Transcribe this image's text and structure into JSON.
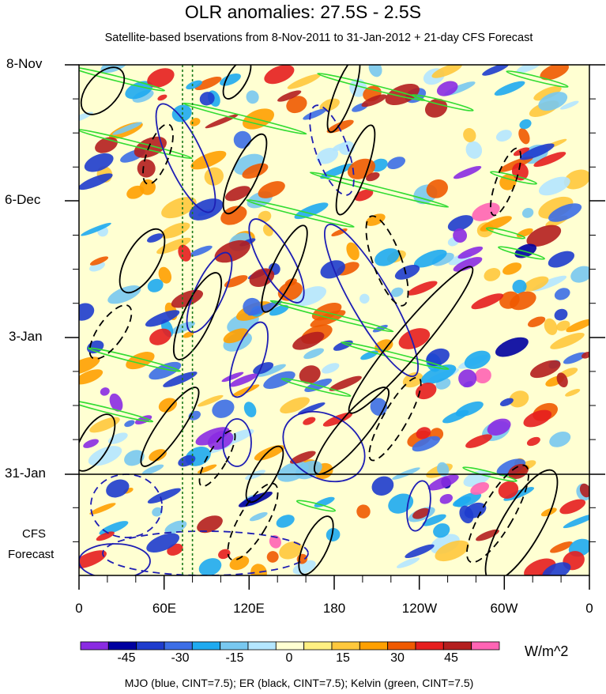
{
  "chart_data": {
    "type": "heatmap",
    "title": "OLR anomalies: 27.5S - 2.5S",
    "subtitle": "Satellite-based bservations from 8-Nov-2011 to 31-Jan-2012 + 21-day CFS Forecast",
    "x_ticks": [
      "0",
      "60E",
      "120E",
      "180",
      "120W",
      "60W",
      "0"
    ],
    "x_range_deg_east": [
      0,
      360
    ],
    "y_ticks": [
      "8-Nov",
      "6-Dec",
      "3-Jan",
      "31-Jan"
    ],
    "forecast_label": [
      "CFS",
      "Forecast"
    ],
    "forecast_days": 21,
    "colorbar": {
      "levels": [
        -52.5,
        -45,
        -37.5,
        -30,
        -22.5,
        -15,
        -7.5,
        0,
        7.5,
        15,
        22.5,
        30,
        37.5,
        45,
        52.5
      ],
      "tick_labels": [
        "-45",
        "-30",
        "-15",
        "0",
        "15",
        "30",
        "45"
      ],
      "tick_values": [
        -45,
        -30,
        -15,
        0,
        15,
        30,
        45
      ],
      "colors": [
        "#8a2be2",
        "#0000a0",
        "#1e3ccd",
        "#3c6ee6",
        "#1eaaf0",
        "#78c8f0",
        "#b4e6ff",
        "#ffffd2",
        "#fff082",
        "#ffc83c",
        "#ffa000",
        "#f05a00",
        "#e61e1e",
        "#b41e1e",
        "#ff64b4"
      ],
      "units": "W/m^2"
    },
    "contours_note": "MJO (blue, CINT=7.5); ER (black, CINT=7.5); Kelvin (green, CINT=7.5)",
    "contour_colors": {
      "mjo": "#1e1eb4",
      "er": "#000000",
      "kelvin": "#32dc32"
    },
    "reference_lines_deg_east": [
      73,
      80
    ]
  }
}
